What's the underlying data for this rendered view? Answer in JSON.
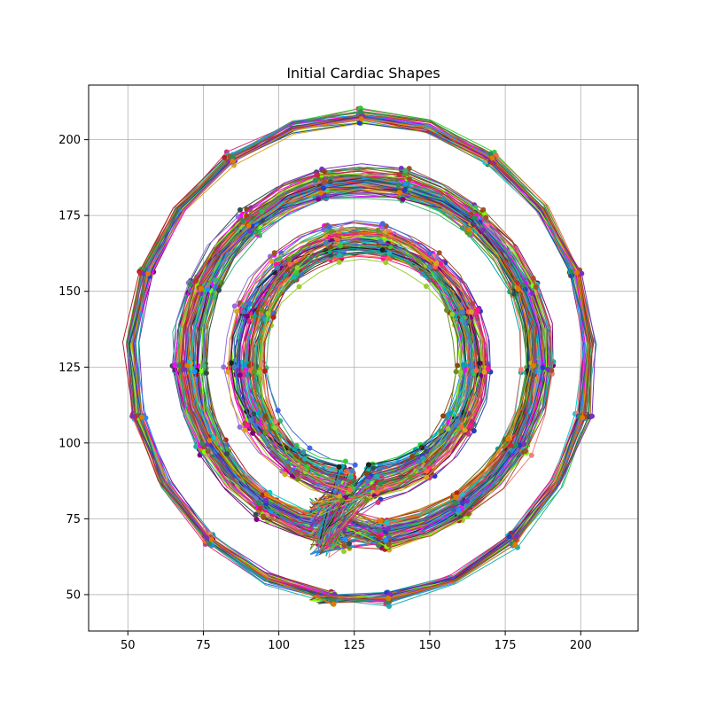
{
  "chart_data": {
    "type": "line",
    "title": "Initial Cardiac Shapes",
    "xlabel": "",
    "ylabel": "",
    "xlim": [
      37,
      219
    ],
    "ylim": [
      38,
      218
    ],
    "x_ticks": [
      50,
      75,
      100,
      125,
      150,
      175,
      200
    ],
    "y_ticks": [
      50,
      75,
      100,
      125,
      150,
      175,
      200
    ],
    "grid": true,
    "markers": true,
    "series_count": 200,
    "shape_layers": [
      {
        "name": "outer",
        "center": [
          127,
          128
        ],
        "rx": 76,
        "ry": 80,
        "jitter": 1.5,
        "count": 35
      },
      {
        "name": "inner-outer",
        "center": [
          128,
          128
        ],
        "rx": 58,
        "ry": 59,
        "jitter": 4,
        "count": 90
      },
      {
        "name": "inner",
        "center": [
          127,
          127
        ],
        "rx": 38,
        "ry": 40,
        "jitter": 5,
        "count": 75
      }
    ],
    "colors": [
      "#1f3fbf",
      "#c22d2d",
      "#2e8b57",
      "#7b2fbf",
      "#e07b00",
      "#00a6a6",
      "#d63384",
      "#556b2f",
      "#222222",
      "#8b4513",
      "#4169e1",
      "#32cd32",
      "#ff1493",
      "#20b2aa",
      "#9acd32",
      "#800080",
      "#ff6347",
      "#4682b4",
      "#daa520",
      "#6b8e23",
      "#00ced1",
      "#b22222",
      "#3cb371",
      "#9370db",
      "#f08080",
      "#2f4f4f",
      "#ff00ff",
      "#7fff00",
      "#1e90ff",
      "#a0522d"
    ]
  }
}
